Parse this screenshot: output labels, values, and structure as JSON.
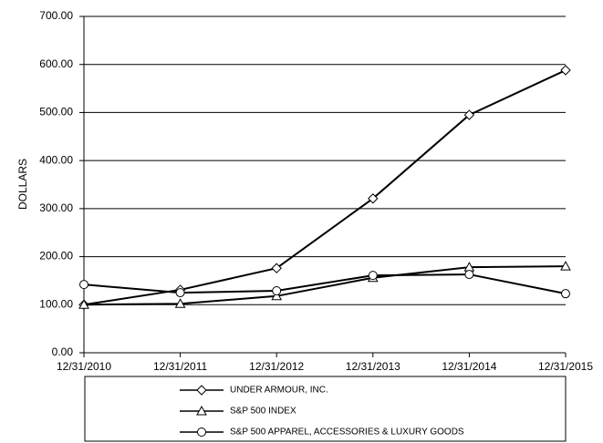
{
  "chart_data": {
    "type": "line",
    "y_label": "DOLLARS",
    "categories": [
      "12/31/2010",
      "12/31/2011",
      "12/31/2012",
      "12/31/2013",
      "12/31/2014",
      "12/31/2015"
    ],
    "series": [
      {
        "name": "UNDER ARMOUR, INC.",
        "color": "#000000",
        "marker": "diamond",
        "values": [
          100,
          131,
          176,
          321,
          495,
          588
        ]
      },
      {
        "name": "S&P 500 INDEX",
        "color": "#000000",
        "marker": "triangle",
        "values": [
          100,
          102,
          118,
          156,
          178,
          180
        ]
      },
      {
        "name": "S&P 500 APPAREL, ACCESSORIES & LUXURY GOODS",
        "color": "#000000",
        "marker": "circle",
        "values": [
          142,
          125,
          129,
          161,
          163,
          123
        ]
      }
    ],
    "ylim": [
      0,
      700
    ],
    "yticks": [
      {
        "value": 0,
        "label": "0.00"
      },
      {
        "value": 100,
        "label": "100.00"
      },
      {
        "value": 200,
        "label": "200.00"
      },
      {
        "value": 300,
        "label": "300.00"
      },
      {
        "value": 400,
        "label": "400.00"
      },
      {
        "value": 500,
        "label": "500.00"
      },
      {
        "value": 600,
        "label": "600.00"
      },
      {
        "value": 700,
        "label": "700.00"
      }
    ],
    "grid": true,
    "legend": "bottom"
  }
}
